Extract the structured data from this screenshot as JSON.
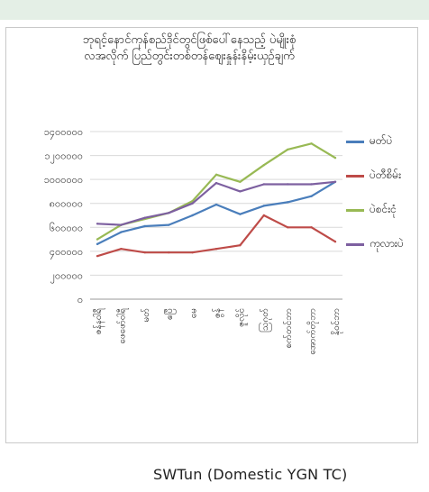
{
  "caption": "SWTun (Domestic YGN TC)",
  "chart_data": {
    "type": "line",
    "title": "ဘုရင့်နောင်ကုန်စည်ဒိုင်တွင်ဖြစ်ပေါ်နေသည့် ပဲမျိုးစုံ\nလအလိုက် ပြည်တွင်းတစ်တန်ဈေးနှုန်းနိမ့်းယှဉ်ချက်",
    "title_lines": [
      "ဘုရင့်နောင်ကုန်စည်ဒိုင်တွင်ဖြစ်ပေါ်နေသည့် ပဲမျိုးစုံ",
      "လအလိုက် ပြည်တွင်းတစ်တန်ဈေးနှုန်းနိမ့်းယှဉ်ချက်"
    ],
    "xlabel": "",
    "ylabel": "",
    "ylim": [
      0,
      1400000
    ],
    "yticks": [
      0,
      200000,
      400000,
      600000,
      800000,
      1000000,
      1200000,
      1400000
    ],
    "ytick_labels": [
      "၀",
      "၂၀၀၀၀၀",
      "၄၀၀၀၀၀",
      "၆၀၀၀၀၀",
      "၈၀၀၀၀၀",
      "၁၀၀၀၀၀၀",
      "၁၂၀၀၀၀၀",
      "၁၄၀၀၀၀၀"
    ],
    "categories": [
      "ဇန်နဝါရီ",
      "ဖေဖော်ဝါရီ",
      "မတ်",
      "ဧပြီ",
      "မေ",
      "ဇွန်",
      "ဇူလိုင်",
      "ဩဂုတ်",
      "စက်တင်ဘာ",
      "အောက်တိုဘာ",
      "နိုဝင်ဘာ"
    ],
    "grid": true,
    "legend_position": "right",
    "series": [
      {
        "name": "မတ်ပဲ",
        "color": "#4a7ebb",
        "values": [
          460000,
          560000,
          610000,
          620000,
          700000,
          790000,
          710000,
          780000,
          810000,
          860000,
          980000
        ]
      },
      {
        "name": "ပဲတီစိမ်း",
        "color": "#be4b48",
        "values": [
          360000,
          420000,
          390000,
          390000,
          390000,
          420000,
          450000,
          700000,
          600000,
          600000,
          480000
        ]
      },
      {
        "name": "ပဲစင်းငုံ",
        "color": "#98b954",
        "values": [
          500000,
          620000,
          670000,
          720000,
          820000,
          1040000,
          980000,
          1120000,
          1250000,
          1300000,
          1180000
        ]
      },
      {
        "name": "ကုလားပဲ",
        "color": "#7d60a0",
        "values": [
          630000,
          620000,
          680000,
          720000,
          800000,
          970000,
          900000,
          960000,
          960000,
          960000,
          980000
        ]
      }
    ]
  }
}
